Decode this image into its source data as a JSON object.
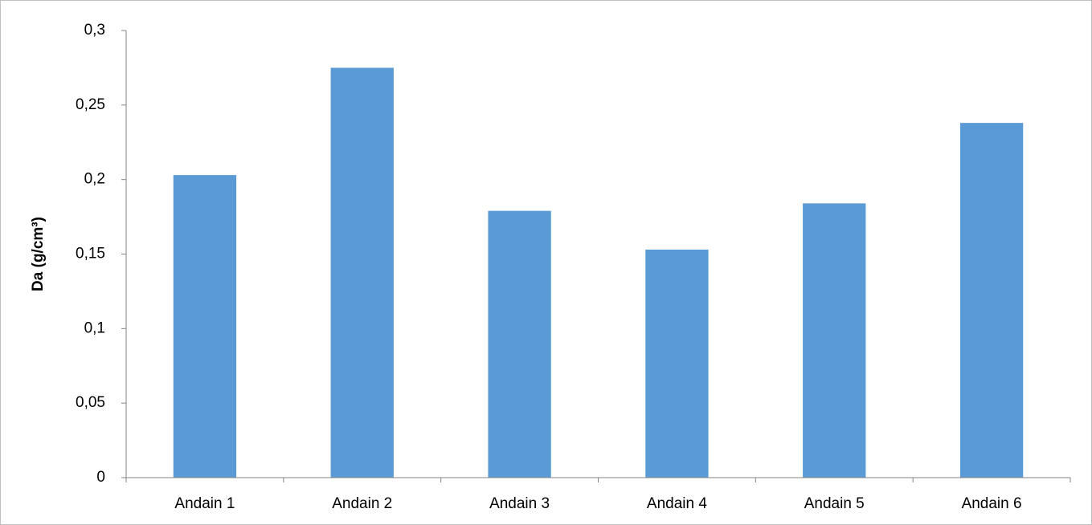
{
  "chart_data": {
    "type": "bar",
    "title": "",
    "xlabel": "",
    "ylabel": "Da (g/cm³)",
    "categories": [
      "Andain 1",
      "Andain 2",
      "Andain 3",
      "Andain 4",
      "Andain 5",
      "Andain 6"
    ],
    "series": [
      {
        "values": [
          0.203,
          0.275,
          0.179,
          0.153,
          0.184,
          0.238
        ],
        "color": "#5b9bd5"
      }
    ],
    "ylim": [
      0,
      0.3
    ],
    "yticks": [
      0,
      0.05,
      0.1,
      0.15,
      0.2,
      0.25,
      0.3
    ],
    "ytick_labels": [
      "0",
      "0,05",
      "0,1",
      "0,15",
      "0,2",
      "0,25",
      "0,3"
    ],
    "grid": false,
    "legend": "none",
    "axis_color": "#868686"
  }
}
